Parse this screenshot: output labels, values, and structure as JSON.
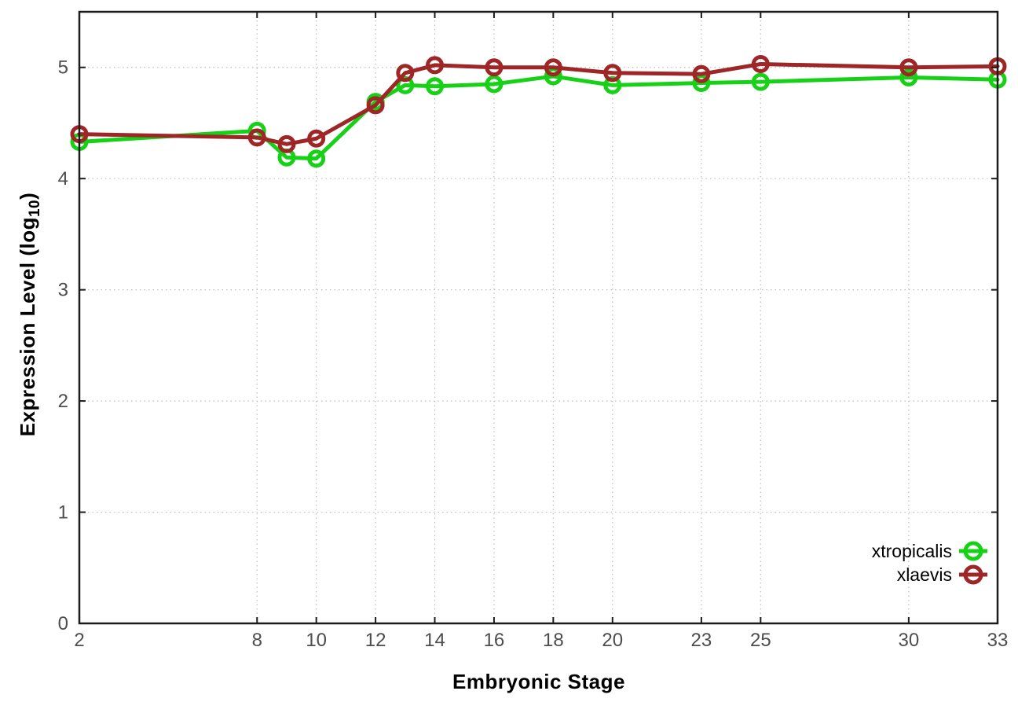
{
  "chart_data": {
    "type": "line",
    "title": "",
    "xlabel": "Embryonic Stage",
    "ylabel": {
      "pre": "Expression Level (log",
      "sub": "10",
      "post": ")"
    },
    "x": [
      2,
      8,
      9,
      10,
      12,
      13,
      14,
      16,
      18,
      20,
      23,
      25,
      30,
      33
    ],
    "x_tick_values": [
      2,
      8,
      10,
      12,
      14,
      16,
      18,
      20,
      23,
      25,
      30,
      33
    ],
    "x_tick_labels": [
      "2",
      "8",
      "10",
      "12",
      "14",
      "16",
      "18",
      "20",
      "23",
      "25",
      "30",
      "33"
    ],
    "y_tick_values": [
      0,
      1,
      2,
      3,
      4,
      5
    ],
    "y_tick_labels": [
      "0",
      "1",
      "2",
      "3",
      "4",
      "5"
    ],
    "xlim": [
      2,
      33
    ],
    "ylim": [
      0,
      5.5
    ],
    "grid": true,
    "legend_position": "inside-bottom-right",
    "series": [
      {
        "name": "xtropicalis",
        "color": "#17d117",
        "marker": "open-circle",
        "values": [
          4.33,
          4.43,
          4.19,
          4.18,
          4.69,
          4.84,
          4.83,
          4.85,
          4.92,
          4.84,
          4.86,
          4.87,
          4.91,
          4.89
        ]
      },
      {
        "name": "xlaevis",
        "color": "#9f2626",
        "marker": "open-circle",
        "values": [
          4.4,
          4.37,
          4.31,
          4.36,
          4.66,
          4.95,
          5.02,
          5.0,
          5.0,
          4.95,
          4.94,
          5.03,
          5.0,
          5.01
        ]
      }
    ],
    "style": {
      "border_color": "#1c1c1c",
      "grid_color": "#bdbdbd",
      "tick_label_color": "#4d4d4d",
      "background": "#ffffff",
      "line_width": 5,
      "marker_radius": 9,
      "marker_stroke": 5
    }
  }
}
